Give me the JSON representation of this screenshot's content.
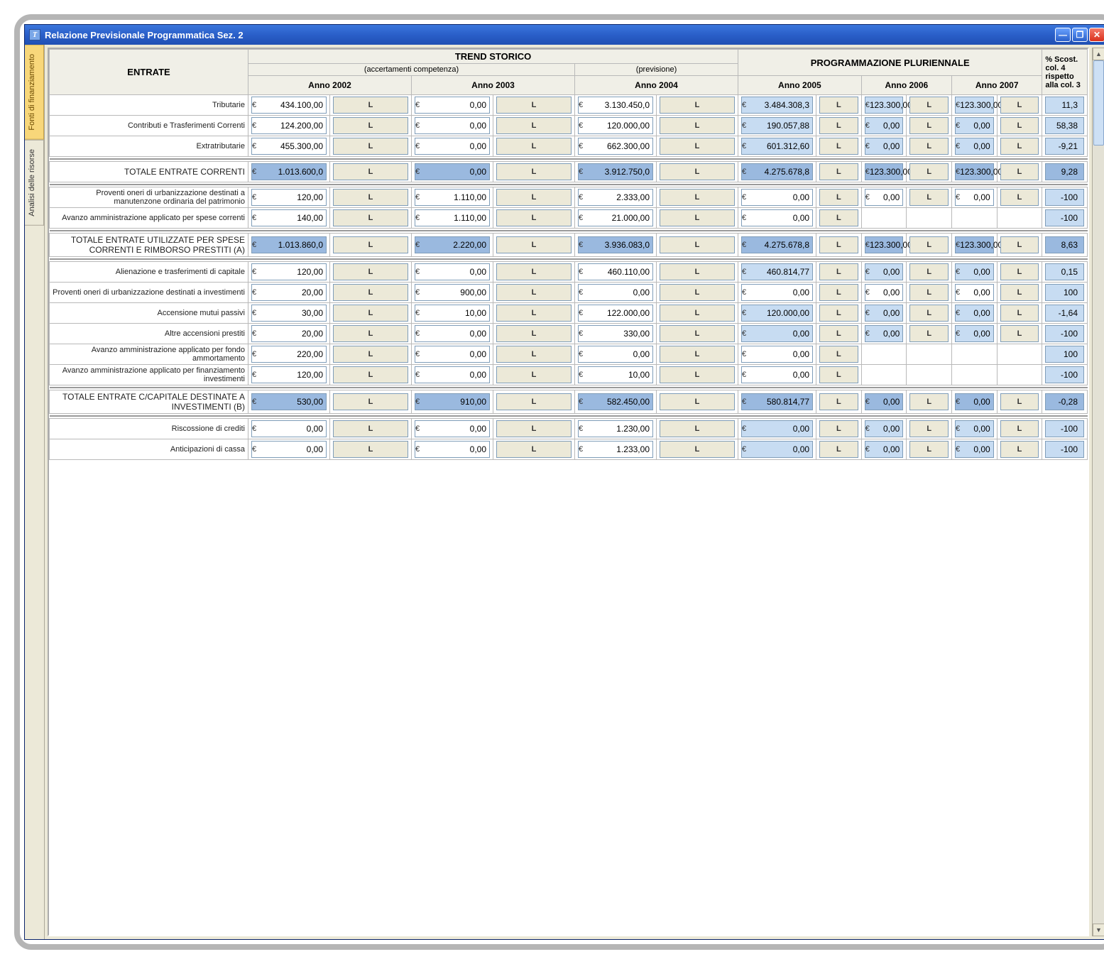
{
  "window": {
    "title": "Relazione Previsionale Programmatica Sez. 2",
    "icon_glyph": "T"
  },
  "tabs": {
    "active": "Fonti di finanziamento",
    "other": "Analisi delle risorse"
  },
  "header": {
    "entrate": "ENTRATE",
    "trend": "TREND STORICO",
    "trend_sub1": "(accertamenti competenza)",
    "trend_sub2": "(previsione)",
    "prog": "PROGRAMMAZIONE PLURIENNALE",
    "scost": "% Scost. col. 4 rispetto alla col. 3",
    "years": [
      "Anno 2002",
      "Anno 2003",
      "Anno 2004",
      "Anno 2005",
      "Anno 2006",
      "Anno 2007"
    ]
  },
  "rows": [
    {
      "type": "data",
      "label": "Tributarie",
      "cells": [
        {
          "v": "434.100,00",
          "s": "w"
        },
        {
          "v": "0,00",
          "s": "w"
        },
        {
          "v": "3.130.450,0",
          "s": "w"
        },
        {
          "v": "3.484.308,3",
          "s": "b"
        },
        {
          "v": "123.300,00",
          "s": "b"
        },
        {
          "v": "123.300,00",
          "s": "b"
        }
      ],
      "scost": "11,3"
    },
    {
      "type": "data",
      "label": "Contributi e Trasferimenti Correnti",
      "cells": [
        {
          "v": "124.200,00",
          "s": "w"
        },
        {
          "v": "0,00",
          "s": "w"
        },
        {
          "v": "120.000,00",
          "s": "w"
        },
        {
          "v": "190.057,88",
          "s": "b"
        },
        {
          "v": "0,00",
          "s": "b"
        },
        {
          "v": "0,00",
          "s": "b"
        }
      ],
      "scost": "58,38"
    },
    {
      "type": "data",
      "label": "Extratributarie",
      "cells": [
        {
          "v": "455.300,00",
          "s": "w"
        },
        {
          "v": "0,00",
          "s": "w"
        },
        {
          "v": "662.300,00",
          "s": "w"
        },
        {
          "v": "601.312,60",
          "s": "b"
        },
        {
          "v": "0,00",
          "s": "b"
        },
        {
          "v": "0,00",
          "s": "b"
        }
      ],
      "scost": "-9,21"
    },
    {
      "type": "sep"
    },
    {
      "type": "total",
      "label": "TOTALE ENTRATE CORRENTI",
      "cells": [
        {
          "v": "1.013.600,0",
          "s": "d"
        },
        {
          "v": "0,00",
          "s": "d"
        },
        {
          "v": "3.912.750,0",
          "s": "d"
        },
        {
          "v": "4.275.678,8",
          "s": "d"
        },
        {
          "v": "123.300,00",
          "s": "d"
        },
        {
          "v": "123.300,00",
          "s": "d"
        }
      ],
      "scost": "9,28",
      "scost_s": "d"
    },
    {
      "type": "sep"
    },
    {
      "type": "data",
      "label": "Proventi oneri di urbanizzazione destinati a manutenzone ordinaria del patrimonio",
      "cells": [
        {
          "v": "120,00",
          "s": "w"
        },
        {
          "v": "1.110,00",
          "s": "w"
        },
        {
          "v": "2.333,00",
          "s": "w"
        },
        {
          "v": "0,00",
          "s": "w"
        },
        {
          "v": "0,00",
          "s": "w"
        },
        {
          "v": "0,00",
          "s": "w"
        }
      ],
      "scost": "-100"
    },
    {
      "type": "data",
      "label": "Avanzo amministrazione applicato per spese correnti",
      "cells": [
        {
          "v": "140,00",
          "s": "w"
        },
        {
          "v": "1.110,00",
          "s": "w"
        },
        {
          "v": "21.000,00",
          "s": "w"
        },
        {
          "v": "0,00",
          "s": "w"
        },
        null,
        null
      ],
      "scost": "-100"
    },
    {
      "type": "sep"
    },
    {
      "type": "total",
      "label": "TOTALE ENTRATE UTILIZZATE PER SPESE CORRENTI E RIMBORSO PRESTITI (A)",
      "cells": [
        {
          "v": "1.013.860,0",
          "s": "d"
        },
        {
          "v": "2.220,00",
          "s": "d"
        },
        {
          "v": "3.936.083,0",
          "s": "d"
        },
        {
          "v": "4.275.678,8",
          "s": "d"
        },
        {
          "v": "123.300,00",
          "s": "d"
        },
        {
          "v": "123.300,00",
          "s": "d"
        }
      ],
      "scost": "8,63",
      "scost_s": "d"
    },
    {
      "type": "sep"
    },
    {
      "type": "data",
      "label": "Alienazione e trasferimenti di capitale",
      "cells": [
        {
          "v": "120,00",
          "s": "w"
        },
        {
          "v": "0,00",
          "s": "w"
        },
        {
          "v": "460.110,00",
          "s": "w"
        },
        {
          "v": "460.814,77",
          "s": "b"
        },
        {
          "v": "0,00",
          "s": "b"
        },
        {
          "v": "0,00",
          "s": "b"
        }
      ],
      "scost": "0,15"
    },
    {
      "type": "data",
      "label": "Proventi oneri di urbanizzazione destinati a investimenti",
      "cells": [
        {
          "v": "20,00",
          "s": "w"
        },
        {
          "v": "900,00",
          "s": "w"
        },
        {
          "v": "0,00",
          "s": "w"
        },
        {
          "v": "0,00",
          "s": "w"
        },
        {
          "v": "0,00",
          "s": "w"
        },
        {
          "v": "0,00",
          "s": "w"
        }
      ],
      "scost": "100"
    },
    {
      "type": "data",
      "label": "Accensione mutui passivi",
      "cells": [
        {
          "v": "30,00",
          "s": "w"
        },
        {
          "v": "10,00",
          "s": "w"
        },
        {
          "v": "122.000,00",
          "s": "w"
        },
        {
          "v": "120.000,00",
          "s": "b"
        },
        {
          "v": "0,00",
          "s": "b"
        },
        {
          "v": "0,00",
          "s": "b"
        }
      ],
      "scost": "-1,64"
    },
    {
      "type": "data",
      "label": "Altre accensioni prestiti",
      "cells": [
        {
          "v": "20,00",
          "s": "w"
        },
        {
          "v": "0,00",
          "s": "w"
        },
        {
          "v": "330,00",
          "s": "w"
        },
        {
          "v": "0,00",
          "s": "b"
        },
        {
          "v": "0,00",
          "s": "b"
        },
        {
          "v": "0,00",
          "s": "b"
        }
      ],
      "scost": "-100"
    },
    {
      "type": "data",
      "label": "Avanzo amministrazione applicato per fondo ammortamento",
      "cells": [
        {
          "v": "220,00",
          "s": "w"
        },
        {
          "v": "0,00",
          "s": "w"
        },
        {
          "v": "0,00",
          "s": "w"
        },
        {
          "v": "0,00",
          "s": "w"
        },
        null,
        null
      ],
      "scost": "100"
    },
    {
      "type": "data",
      "label": "Avanzo amministrazione applicato per finanziamento investimenti",
      "cells": [
        {
          "v": "120,00",
          "s": "w"
        },
        {
          "v": "0,00",
          "s": "w"
        },
        {
          "v": "10,00",
          "s": "w"
        },
        {
          "v": "0,00",
          "s": "w"
        },
        null,
        null
      ],
      "scost": "-100"
    },
    {
      "type": "sep"
    },
    {
      "type": "total",
      "label": "TOTALE ENTRATE C/CAPITALE DESTINATE A INVESTIMENTI (B)",
      "cells": [
        {
          "v": "530,00",
          "s": "d"
        },
        {
          "v": "910,00",
          "s": "d"
        },
        {
          "v": "582.450,00",
          "s": "d"
        },
        {
          "v": "580.814,77",
          "s": "d"
        },
        {
          "v": "0,00",
          "s": "d"
        },
        {
          "v": "0,00",
          "s": "d"
        }
      ],
      "scost": "-0,28",
      "scost_s": "d"
    },
    {
      "type": "sep"
    },
    {
      "type": "data",
      "label": "Riscossione di crediti",
      "cells": [
        {
          "v": "0,00",
          "s": "w"
        },
        {
          "v": "0,00",
          "s": "w"
        },
        {
          "v": "1.230,00",
          "s": "w"
        },
        {
          "v": "0,00",
          "s": "b"
        },
        {
          "v": "0,00",
          "s": "b"
        },
        {
          "v": "0,00",
          "s": "b"
        }
      ],
      "scost": "-100"
    },
    {
      "type": "data",
      "label": "Anticipazioni di cassa",
      "cells": [
        {
          "v": "0,00",
          "s": "w"
        },
        {
          "v": "0,00",
          "s": "w"
        },
        {
          "v": "1.233,00",
          "s": "w"
        },
        {
          "v": "0,00",
          "s": "b"
        },
        {
          "v": "0,00",
          "s": "b"
        },
        {
          "v": "0,00",
          "s": "b"
        }
      ],
      "scost": "-100"
    }
  ],
  "style": {
    "colors": {
      "titlebar_top": "#3b77dd",
      "titlebar_bot": "#1f4fb3",
      "close_btn": "#d9301c",
      "field_border": "#7f9db9",
      "blue_cell": "#c7dcf2",
      "dark_blue_cell": "#9ab9df",
      "tab_active_bg": "#f8d77a",
      "tab_border": "#aca899",
      "grid_border": "#b9b9b9",
      "sep_line": "#9a9a9a"
    },
    "currency_symbol": "€",
    "L_button_label": "L"
  }
}
